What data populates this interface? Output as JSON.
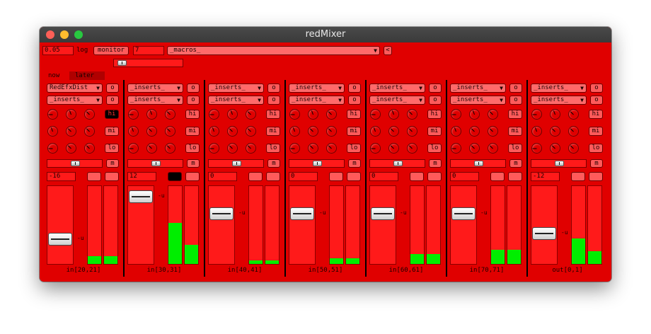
{
  "window": {
    "title": "redMixer"
  },
  "toolbar": {
    "value_field": "0.05",
    "log_label": "log",
    "monitor_button": "monitor",
    "count_field": "7",
    "macros_combo": "_macros_",
    "back_button": "<"
  },
  "tabs": [
    {
      "label": "now"
    },
    {
      "label": "later"
    }
  ],
  "strip_common": {
    "o_button": "o",
    "hi_button": "hi",
    "mi_button": "mi",
    "lo_button": "lo",
    "m_button": "m",
    "db_label": "-u"
  },
  "strips": [
    {
      "insert1": "RedEfxDist",
      "insert2": "_inserts_",
      "value": "-16",
      "label": "in[20,21]",
      "fader": 0.28,
      "meters": [
        0.1,
        0.1
      ],
      "hi_active": true
    },
    {
      "insert1": "_inserts_",
      "insert2": "_inserts_",
      "value": "12",
      "label": "in[30,31]",
      "fader": 0.93,
      "meters": [
        0.53,
        0.25
      ],
      "hi_active": false
    },
    {
      "insert1": "_inserts_",
      "insert2": "_inserts_",
      "value": "0",
      "label": "in[40,41]",
      "fader": 0.67,
      "meters": [
        0.05,
        0.05
      ],
      "hi_active": false
    },
    {
      "insert1": "_inserts_",
      "insert2": "_inserts_",
      "value": "0",
      "label": "in[50,51]",
      "fader": 0.67,
      "meters": [
        0.07,
        0.07
      ],
      "hi_active": false
    },
    {
      "insert1": "_inserts_",
      "insert2": "_inserts_",
      "value": "0",
      "label": "in[60,61]",
      "fader": 0.67,
      "meters": [
        0.13,
        0.13
      ],
      "hi_active": false
    },
    {
      "insert1": "_inserts_",
      "insert2": "_inserts_",
      "value": "0",
      "label": "in[70,71]",
      "fader": 0.67,
      "meters": [
        0.18,
        0.18
      ],
      "hi_active": false
    },
    {
      "insert1": "_inserts_",
      "insert2": "_inserts_",
      "value": "-12",
      "label": "out[0,1]",
      "fader": 0.37,
      "meters": [
        0.33,
        0.16
      ],
      "hi_active": false
    }
  ],
  "colors": {
    "background": "#e00000",
    "meter": "#00ee00",
    "hi_active": "#000000"
  }
}
